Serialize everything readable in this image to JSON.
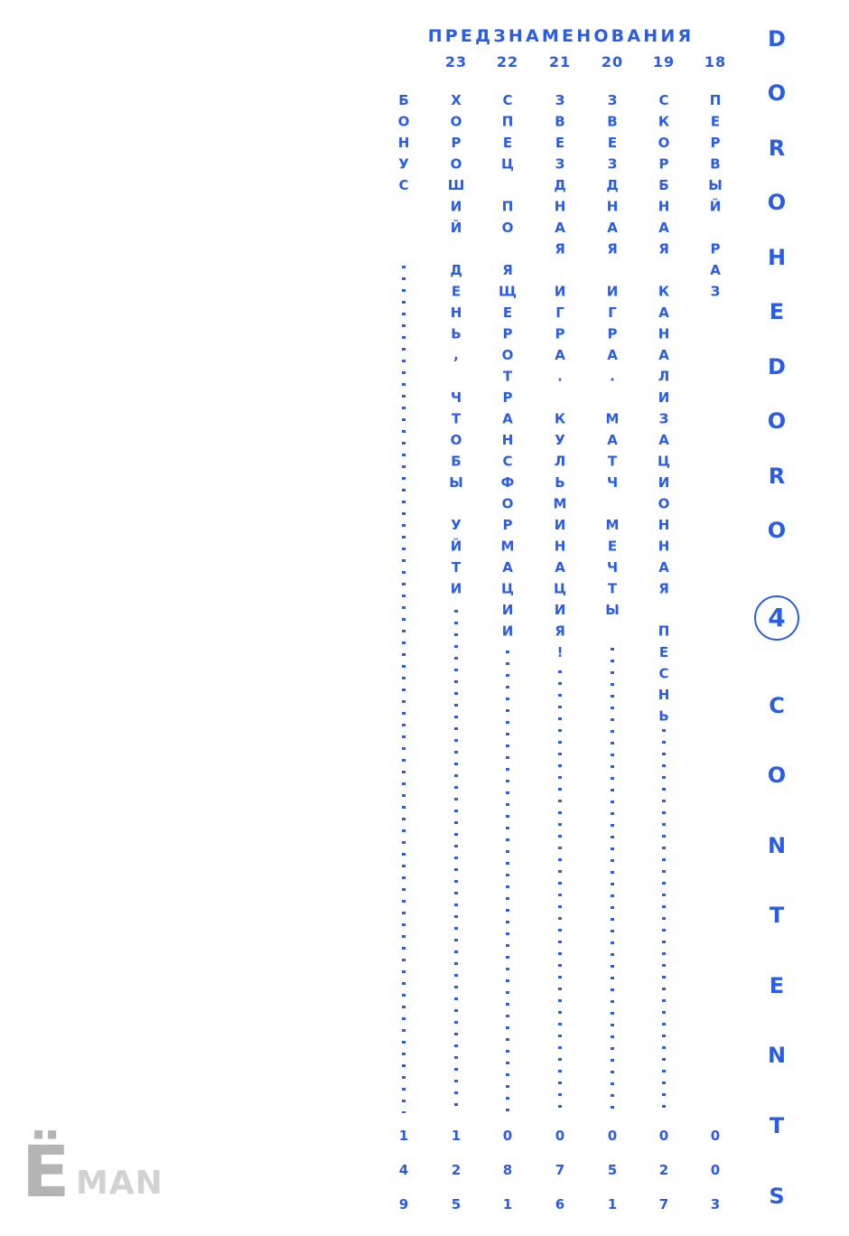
{
  "heading": "ПРЕДЗНАМЕНОВАНИЯ",
  "brand": {
    "series_letters": [
      "D",
      "O",
      "R",
      "O",
      "H",
      "E",
      "D",
      "O",
      "R",
      "O"
    ],
    "volume": "4",
    "contents_letters": [
      "C",
      "O",
      "N",
      "T",
      "E",
      "N",
      "T",
      "S"
    ]
  },
  "chapters": [
    {
      "number": "18",
      "title": "ПЕРВЫЙ РАЗ",
      "page": "003"
    },
    {
      "number": "19",
      "title": "СКОРБНАЯ КАНАЛИЗАЦИОННАЯ ПЕСНЬ",
      "page": "027"
    },
    {
      "number": "20",
      "title": "ЗВЕЗДНАЯ ИГРА. МАТЧ МЕЧТЫ",
      "page": "051"
    },
    {
      "number": "21",
      "title": "ЗВЕЗДНАЯ ИГРА. КУЛЬМИНАЦИЯ!",
      "page": "076"
    },
    {
      "number": "22",
      "title": "СПЕЦ ПО ЯЩЕРОТРАНСФОРМАЦИИ",
      "page": "081"
    },
    {
      "number": "23",
      "title": "ХОРОШИЙ ДЕНЬ, ЧТОБЫ УЙТИ",
      "page": "125"
    },
    {
      "number": "",
      "title": "БОНУС",
      "page": "149"
    }
  ],
  "logo": {
    "text_big": "Ё",
    "text_small": "MAN"
  },
  "colors": {
    "accent": "#2a5ce6",
    "logo": "#b4b4b4"
  }
}
